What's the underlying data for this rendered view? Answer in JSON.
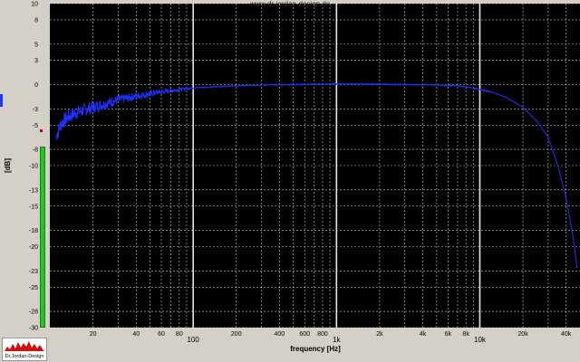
{
  "watermark": "www.dr-jordan-design.de",
  "logo_text": "Dr.Jordan-Design",
  "colors": {
    "background": "#000000",
    "grid": "#c8c8c8",
    "line": "#1f2fff",
    "meter": "#00dd00",
    "frame": "#d4d0c8"
  },
  "chart_data": {
    "type": "line",
    "title": "",
    "xlabel": "frequency [Hz]",
    "ylabel": "[dB]",
    "xscale": "log",
    "xlim": [
      10,
      50000
    ],
    "ylim": [
      -30,
      10
    ],
    "grid": true,
    "y_ticks": [
      10,
      8,
      5,
      3,
      0,
      -3,
      -5,
      -8,
      -10,
      -13,
      -15,
      -18,
      -20,
      -23,
      -25,
      -28,
      -30
    ],
    "y_tick_labels": [
      "10",
      "8",
      "5",
      "3",
      "0",
      "-3",
      "-5",
      "-8",
      "-10",
      "-13",
      "-15",
      "-18",
      "-20",
      "-23",
      "-25",
      "-28",
      "-30"
    ],
    "x_major": [
      {
        "value": 100,
        "label": "100"
      },
      {
        "value": 1000,
        "label": "1k"
      },
      {
        "value": 10000,
        "label": "10k"
      }
    ],
    "x_minor": [
      {
        "value": 20,
        "label": "20"
      },
      {
        "value": 40,
        "label": "40"
      },
      {
        "value": 60,
        "label": "60"
      },
      {
        "value": 80,
        "label": "80"
      },
      {
        "value": 200,
        "label": "200"
      },
      {
        "value": 400,
        "label": "400"
      },
      {
        "value": 600,
        "label": "600"
      },
      {
        "value": 800,
        "label": "800"
      },
      {
        "value": 2000,
        "label": "2k"
      },
      {
        "value": 4000,
        "label": "4k"
      },
      {
        "value": 6000,
        "label": "6k"
      },
      {
        "value": 8000,
        "label": "8k"
      },
      {
        "value": 20000,
        "label": "20k"
      },
      {
        "value": 40000,
        "label": "40k"
      }
    ],
    "series": [
      {
        "points": [
          [
            11,
            -6.5
          ],
          [
            12,
            -4.8
          ],
          [
            13,
            -4.2
          ],
          [
            14,
            -3.8
          ],
          [
            15,
            -3.5
          ],
          [
            17,
            -3.2
          ],
          [
            20,
            -2.8
          ],
          [
            25,
            -2.3
          ],
          [
            30,
            -1.9
          ],
          [
            40,
            -1.4
          ],
          [
            50,
            -1.1
          ],
          [
            60,
            -0.9
          ],
          [
            80,
            -0.6
          ],
          [
            100,
            -0.4
          ],
          [
            150,
            -0.25
          ],
          [
            200,
            -0.15
          ],
          [
            300,
            -0.05
          ],
          [
            500,
            0.0
          ],
          [
            700,
            0.05
          ],
          [
            1000,
            0.1
          ],
          [
            2000,
            0.05
          ],
          [
            3000,
            0.0
          ],
          [
            5000,
            -0.05
          ],
          [
            7000,
            -0.15
          ],
          [
            9000,
            -0.4
          ],
          [
            10000,
            -0.6
          ],
          [
            12000,
            -0.9
          ],
          [
            15000,
            -1.5
          ],
          [
            20000,
            -2.8
          ],
          [
            25000,
            -4.5
          ],
          [
            30000,
            -6.5
          ],
          [
            35000,
            -10
          ],
          [
            40000,
            -14
          ],
          [
            45000,
            -19
          ],
          [
            48000,
            -23
          ]
        ]
      }
    ]
  }
}
